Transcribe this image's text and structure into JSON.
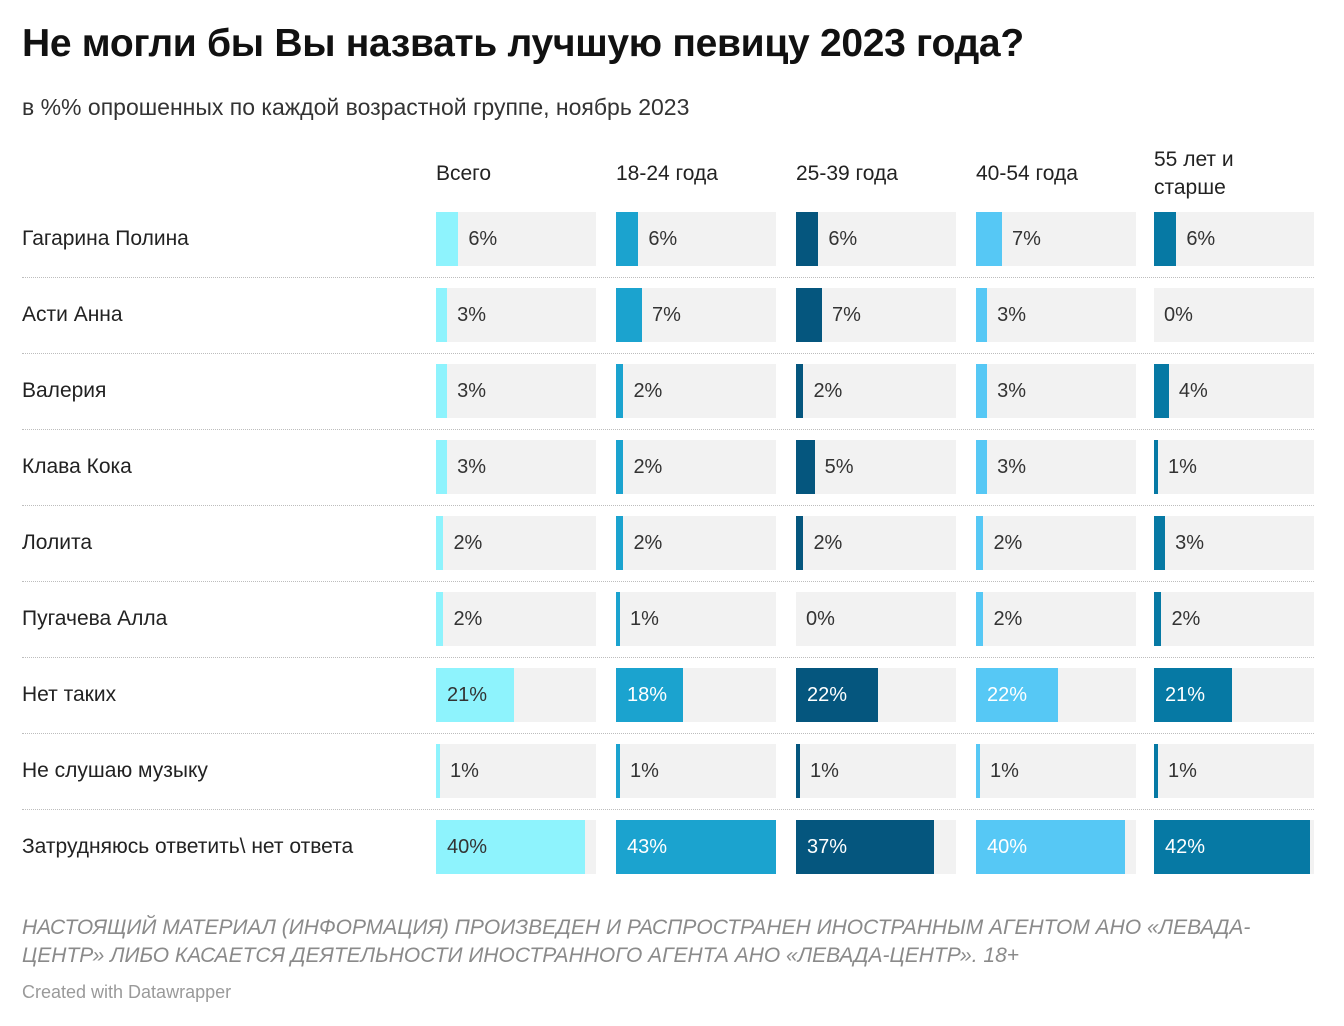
{
  "header": {
    "title": "Не могли бы Вы назвать лучшую певицу 2023 года?",
    "subtitle": "в %% опрошенных по каждой возрастной группе, ноябрь 2023"
  },
  "chart_data": {
    "type": "bar",
    "columns": [
      {
        "name": "Всего",
        "color": "#8ef3fd"
      },
      {
        "name": "18-24 года",
        "color": "#1ba3cf"
      },
      {
        "name": "25-39 года",
        "color": "#05567e"
      },
      {
        "name": "40-54 года",
        "color": "#56c8f5"
      },
      {
        "name": "55 лет и старше",
        "color": "#0679a4"
      }
    ],
    "categories": [
      "Гагарина Полина",
      "Асти Анна",
      "Валерия",
      "Клава Кока",
      "Лолита",
      "Пугачева Алла",
      "Нет таких",
      "Не слушаю музыку",
      "Затрудняюсь ответить\\ нет ответа"
    ],
    "values": [
      [
        6,
        6,
        6,
        7,
        6
      ],
      [
        3,
        7,
        7,
        3,
        0
      ],
      [
        3,
        2,
        2,
        3,
        4
      ],
      [
        3,
        2,
        5,
        3,
        1
      ],
      [
        2,
        2,
        2,
        2,
        3
      ],
      [
        2,
        1,
        0,
        2,
        2
      ],
      [
        21,
        18,
        22,
        22,
        21
      ],
      [
        1,
        1,
        1,
        1,
        1
      ],
      [
        40,
        43,
        37,
        40,
        42
      ]
    ],
    "labels": [
      [
        "6%",
        "6%",
        "6%",
        "7%",
        "6%"
      ],
      [
        "3%",
        "7%",
        "7%",
        "3%",
        "0%"
      ],
      [
        "3%",
        "2%",
        "2%",
        "3%",
        "4%"
      ],
      [
        "3%",
        "2%",
        "5%",
        "3%",
        "1%"
      ],
      [
        "2%",
        "2%",
        "2%",
        "2%",
        "3%"
      ],
      [
        "2%",
        "1%",
        "0%",
        "2%",
        "2%"
      ],
      [
        "21%",
        "18%",
        "22%",
        "22%",
        "21%"
      ],
      [
        "1%",
        "1%",
        "1%",
        "1%",
        "1%"
      ],
      [
        "40%",
        "43%",
        "37%",
        "40%",
        "42%"
      ]
    ],
    "xlim": [
      0,
      43
    ]
  },
  "footer": {
    "note": "НАСТОЯЩИЙ МАТЕРИАЛ (ИНФОРМАЦИЯ) ПРОИЗВЕДЕН И РАСПРОСТРАНЕН ИНОСТРАННЫМ АГЕНТОМ АНО «ЛЕВАДА-ЦЕНТР» ЛИБО КАСАЕТСЯ ДЕЯТЕЛЬНОСТИ ИНОСТРАННОГО АГЕНТА АНО «ЛЕВАДА-ЦЕНТР». 18+",
    "credit": "Created with Datawrapper"
  }
}
